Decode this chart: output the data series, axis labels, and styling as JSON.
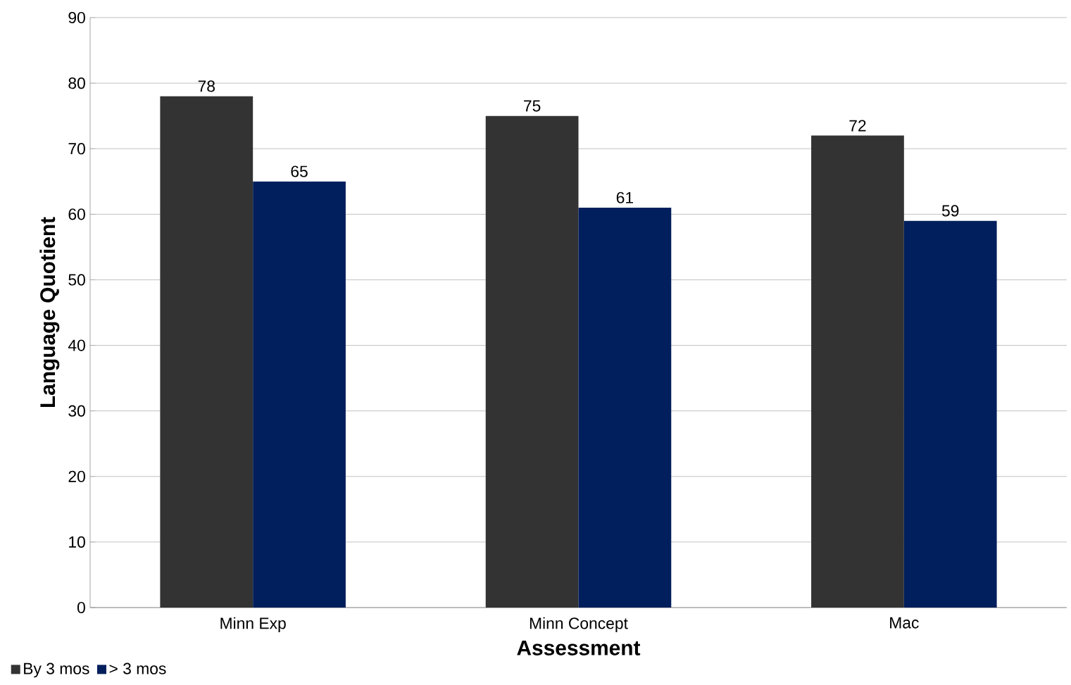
{
  "chart_data": {
    "type": "bar",
    "xlabel": "Assessment",
    "ylabel": "Language Quotient",
    "categories": [
      "Minn Exp",
      "Minn Concept",
      "Mac"
    ],
    "series": [
      {
        "name": "By 3 mos",
        "color": "#333333",
        "values": [
          78,
          75,
          72
        ]
      },
      {
        "name": "> 3 mos",
        "color": "#001f5c",
        "values": [
          65,
          61,
          59
        ]
      }
    ],
    "ylim": [
      0,
      90
    ],
    "yticks": [
      0,
      10,
      20,
      30,
      40,
      50,
      60,
      70,
      80,
      90
    ],
    "grid": "y",
    "legend": "bottom left",
    "data_labels": true
  }
}
